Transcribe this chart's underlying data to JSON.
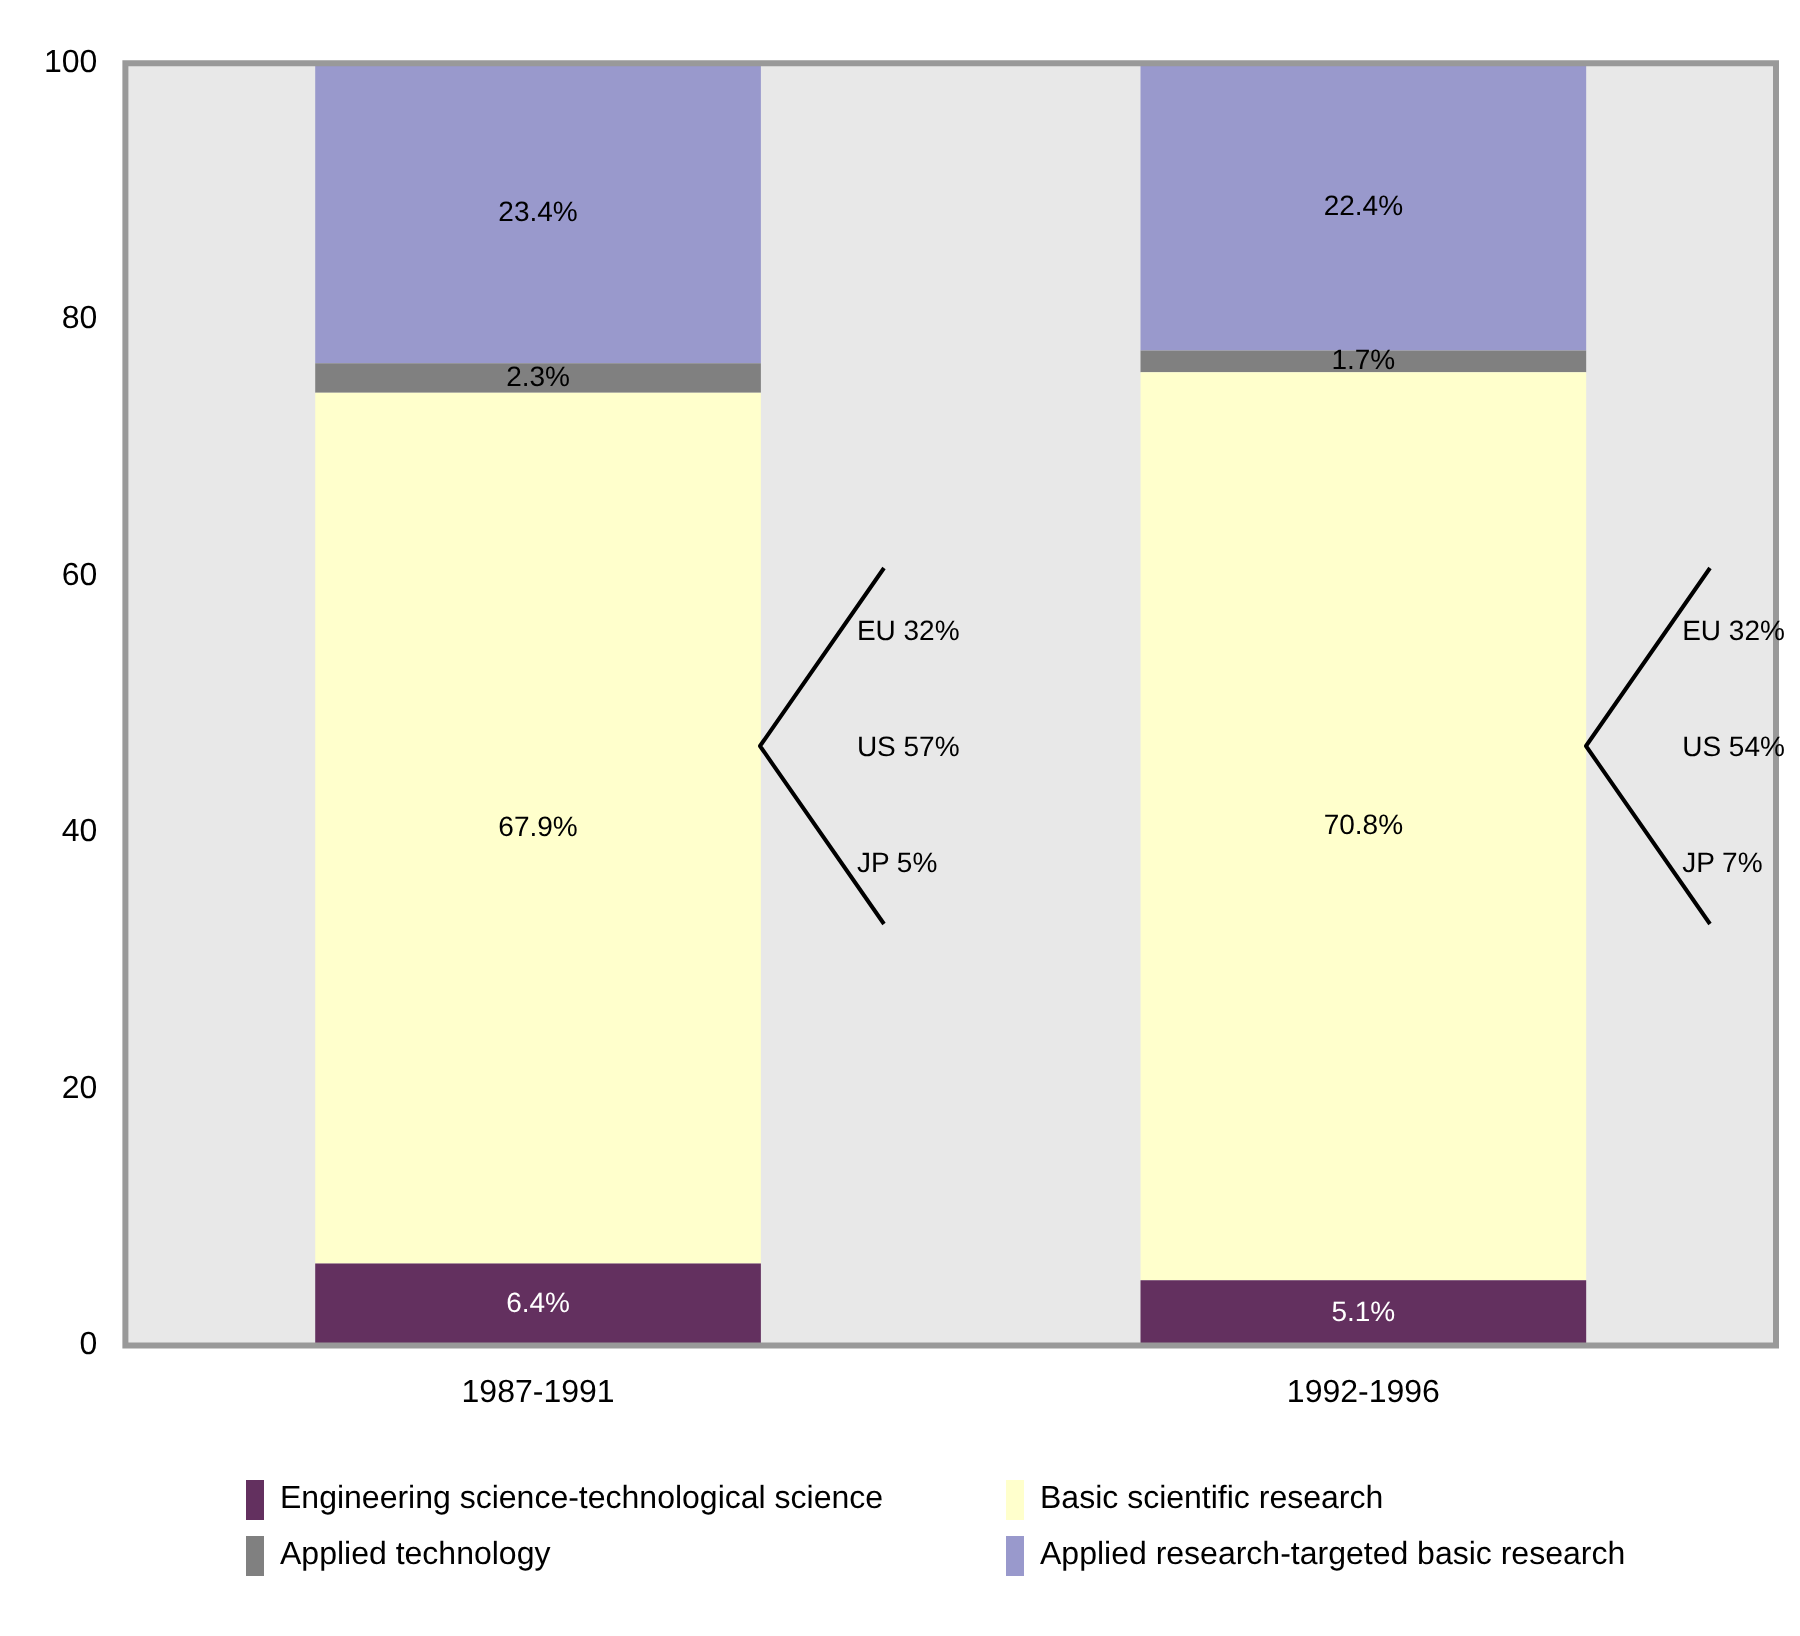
{
  "chart_data": {
    "type": "bar",
    "stacked": true,
    "categories": [
      "1987-1991",
      "1992-1996"
    ],
    "series": [
      {
        "name": "Engineering science-technological science",
        "color": "#63305f",
        "values": [
          6.4,
          5.1
        ],
        "value_labels": [
          "6.4%",
          "5.1%"
        ]
      },
      {
        "name": "Basic scientific research",
        "color": "#ffffcc",
        "values": [
          67.9,
          70.8
        ],
        "value_labels": [
          "67.9%",
          "70.8%"
        ]
      },
      {
        "name": "Applied technology",
        "color": "#808080",
        "values": [
          2.3,
          1.7
        ],
        "value_labels": [
          "2.3%",
          "1.7%"
        ]
      },
      {
        "name": "Applied research-targeted basic research",
        "color": "#9999cc",
        "values": [
          23.4,
          22.4
        ],
        "value_labels": [
          "23.4%",
          "22.4%"
        ]
      }
    ],
    "ylim": [
      0,
      100
    ],
    "yticks": [
      0,
      20,
      40,
      60,
      80,
      100
    ],
    "grid": false,
    "legend": "bottom",
    "annotations": [
      "EU 32%",
      "US 57%",
      "JP 5%",
      "EU 32%",
      "US 54%",
      "JP 7%"
    ]
  }
}
